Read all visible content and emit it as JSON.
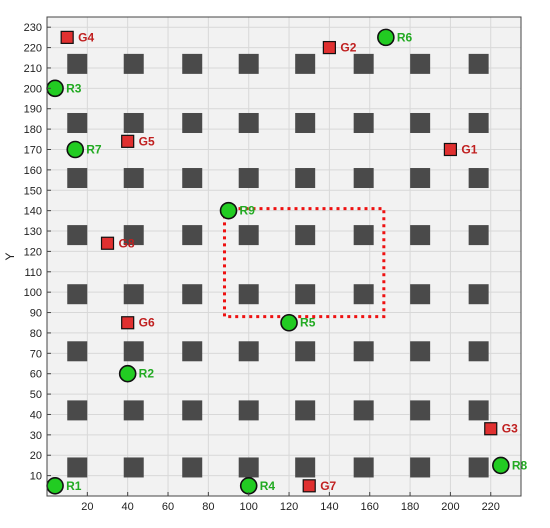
{
  "chart_data": {
    "type": "scatter",
    "title": "",
    "xlabel": "",
    "ylabel": "Y",
    "xlim": [
      0,
      235
    ],
    "ylim": [
      0,
      235
    ],
    "xticks": [
      20,
      40,
      60,
      80,
      100,
      120,
      140,
      160,
      180,
      200,
      220
    ],
    "yticks": [
      10,
      20,
      30,
      40,
      50,
      60,
      70,
      80,
      90,
      100,
      110,
      120,
      130,
      140,
      150,
      160,
      170,
      180,
      190,
      200,
      210,
      220,
      230
    ],
    "grid": true,
    "obstacles": {
      "x": [
        15,
        43,
        72,
        100,
        128,
        157,
        185,
        214
      ],
      "y": [
        14,
        42,
        71,
        99,
        128,
        156,
        183,
        212
      ]
    },
    "region": {
      "x": [
        88,
        167
      ],
      "y": [
        88,
        141
      ]
    },
    "series": [
      {
        "marker": "square",
        "color": "#e03030",
        "label_color": "#c02020",
        "points": [
          {
            "label": "G1",
            "x": 200,
            "y": 170
          },
          {
            "label": "G2",
            "x": 140,
            "y": 220
          },
          {
            "label": "G3",
            "x": 220,
            "y": 33
          },
          {
            "label": "G4",
            "x": 10,
            "y": 225
          },
          {
            "label": "G5",
            "x": 40,
            "y": 174
          },
          {
            "label": "G6",
            "x": 40,
            "y": 85
          },
          {
            "label": "G7",
            "x": 130,
            "y": 5
          },
          {
            "label": "G8",
            "x": 30,
            "y": 124
          }
        ]
      },
      {
        "marker": "circle",
        "color": "#22cc22",
        "label_color": "#22aa22",
        "points": [
          {
            "label": "R1",
            "x": 4,
            "y": 5
          },
          {
            "label": "R2",
            "x": 40,
            "y": 60
          },
          {
            "label": "R3",
            "x": 4,
            "y": 200
          },
          {
            "label": "R4",
            "x": 100,
            "y": 5
          },
          {
            "label": "R5",
            "x": 120,
            "y": 85
          },
          {
            "label": "R6",
            "x": 168,
            "y": 225
          },
          {
            "label": "R7",
            "x": 14,
            "y": 170
          },
          {
            "label": "R8",
            "x": 225,
            "y": 15
          },
          {
            "label": "R9",
            "x": 90,
            "y": 140
          }
        ]
      }
    ]
  }
}
